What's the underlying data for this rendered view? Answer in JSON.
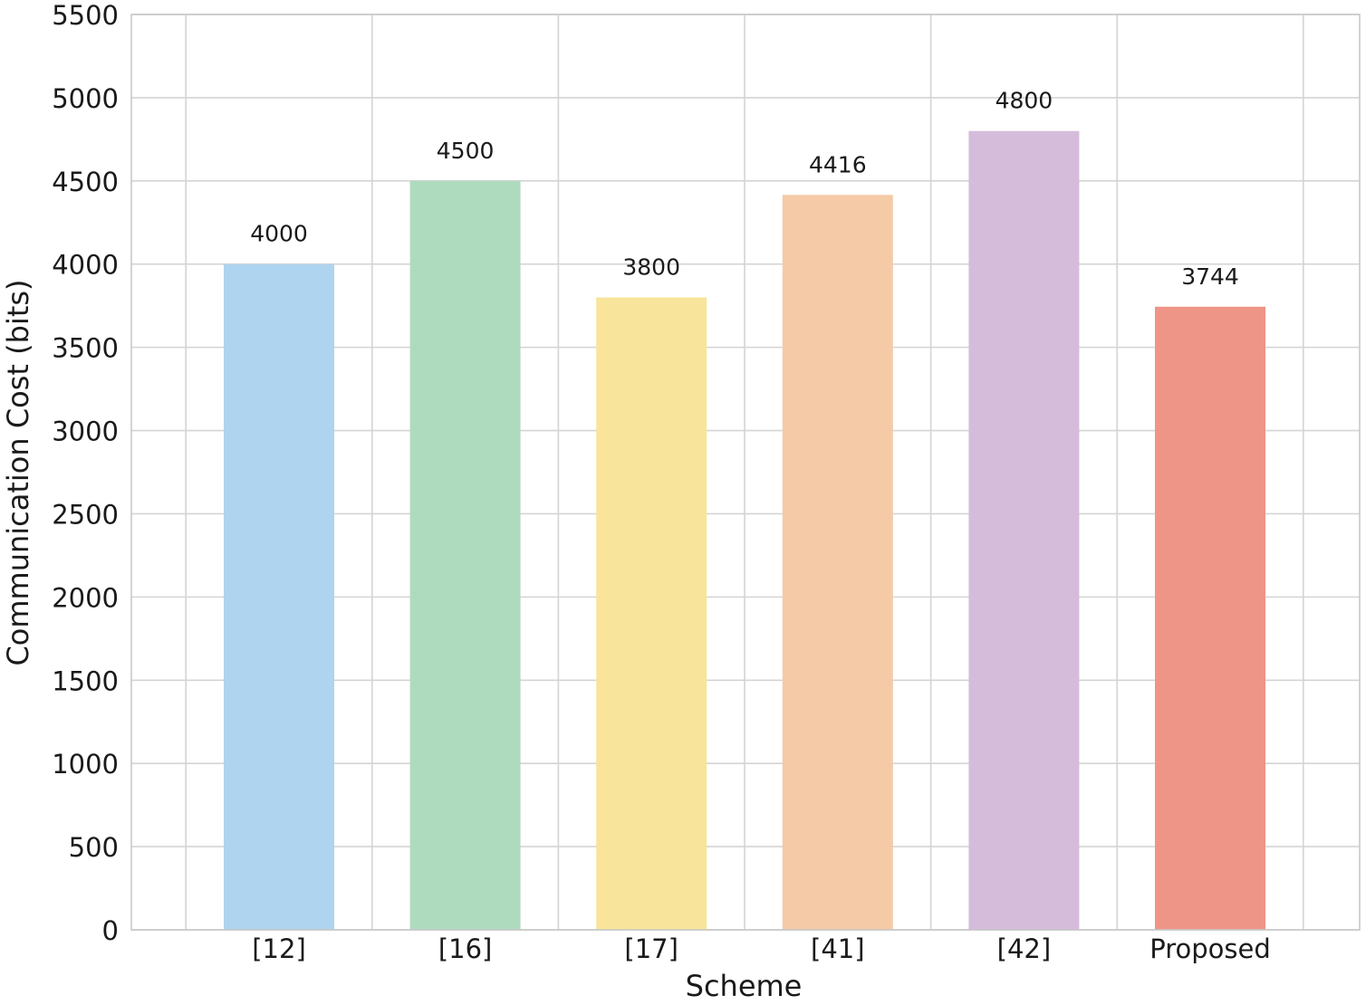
{
  "chart_data": {
    "type": "bar",
    "title": "",
    "xlabel": "Scheme",
    "ylabel": "Communication Cost (bits)",
    "categories": [
      "[12]",
      "[16]",
      "[17]",
      "[41]",
      "[42]",
      "Proposed"
    ],
    "values": [
      4000,
      4500,
      3800,
      4416,
      4800,
      3744
    ],
    "value_labels": [
      "4000",
      "4500",
      "3800",
      "4416",
      "4800",
      "3744"
    ],
    "colors": [
      "#aed4ef",
      "#aedbbe",
      "#f8e59b",
      "#f5caa7",
      "#d5bcdb",
      "#ee9587"
    ],
    "ylim": [
      0,
      5500
    ],
    "yticks": [
      0,
      500,
      1000,
      1500,
      2000,
      2500,
      3000,
      3500,
      4000,
      4500,
      5000,
      5500
    ],
    "ytick_labels": [
      "0",
      "500",
      "1000",
      "1500",
      "2000",
      "2500",
      "3000",
      "3500",
      "4000",
      "4500",
      "5000",
      "5500"
    ],
    "grid": true,
    "legend": "none"
  }
}
